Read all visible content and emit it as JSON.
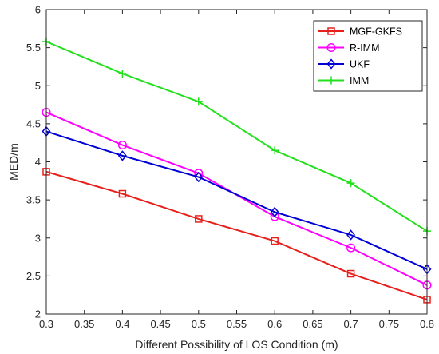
{
  "chart_data": {
    "type": "line",
    "title": "",
    "xlabel": "Different Possibility of LOS Condition (m)",
    "ylabel": "MED/m",
    "x": [
      0.3,
      0.4,
      0.5,
      0.6,
      0.7,
      0.8
    ],
    "xlim": [
      0.3,
      0.8
    ],
    "ylim": [
      2,
      6
    ],
    "xticks": [
      "0.3",
      "0.35",
      "0.4",
      "0.45",
      "0.5",
      "0.55",
      "0.6",
      "0.65",
      "0.7",
      "0.75",
      "0.8"
    ],
    "yticks": [
      "2",
      "2.5",
      "3",
      "3.5",
      "4",
      "4.5",
      "5",
      "5.5",
      "6"
    ],
    "grid": false,
    "legend_position": "top-right",
    "series": [
      {
        "name": "MGF-GKFS",
        "color": "#e8201c",
        "marker": "square",
        "values": [
          3.87,
          3.58,
          3.25,
          2.96,
          2.53,
          2.19
        ]
      },
      {
        "name": "R-IMM",
        "color": "#ff00ff",
        "marker": "circle",
        "values": [
          4.65,
          4.22,
          3.85,
          3.28,
          2.87,
          2.38
        ]
      },
      {
        "name": "UKF",
        "color": "#0000d4",
        "marker": "diamond",
        "values": [
          4.4,
          4.08,
          3.8,
          3.34,
          3.04,
          2.59
        ]
      },
      {
        "name": "IMM",
        "color": "#22e01c",
        "marker": "plus",
        "values": [
          5.58,
          5.16,
          4.79,
          4.15,
          3.72,
          3.09
        ]
      }
    ]
  }
}
